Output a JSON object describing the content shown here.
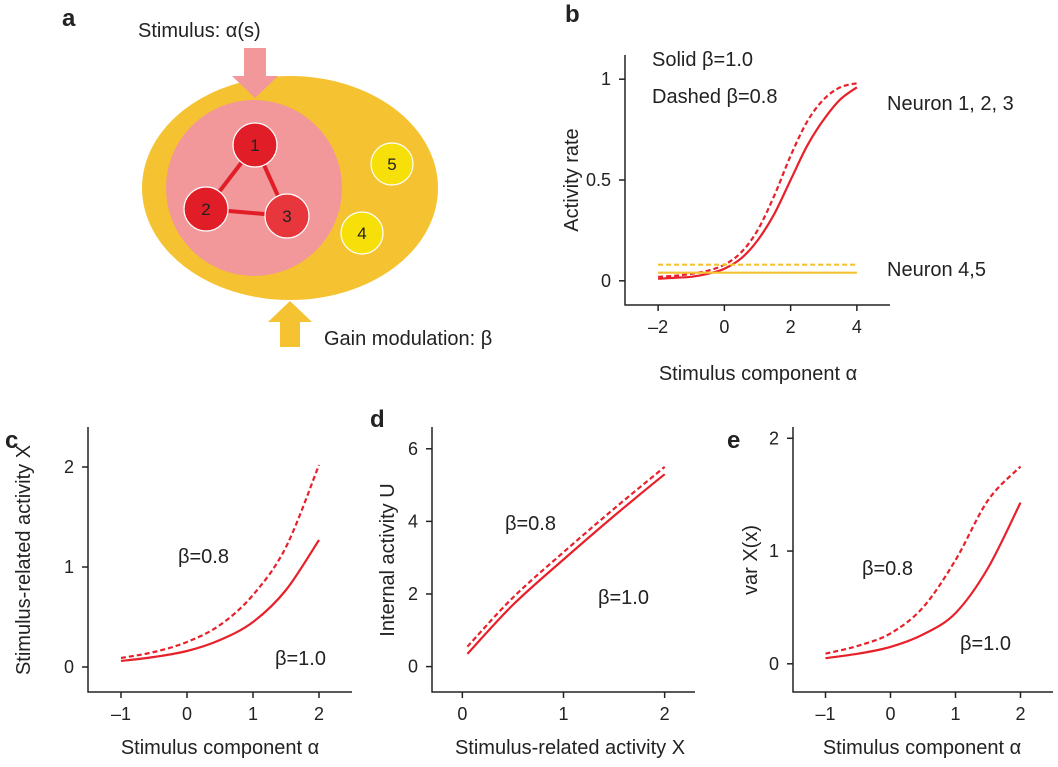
{
  "colors": {
    "red": "#e8202a",
    "orange": "#f5c232",
    "orange_dark": "#f0b51d",
    "pink": "#f2979a",
    "yellow_node": "#f7df0a",
    "node_red": "#e11e27",
    "axis": "#222222"
  },
  "diagram": {
    "letter": "a",
    "stimulus_label": "Stimulus: α(s)",
    "gain_label": "Gain modulation: β",
    "nodes": [
      {
        "label": "1",
        "group": "stimulus-related"
      },
      {
        "label": "2",
        "group": "stimulus-related"
      },
      {
        "label": "3",
        "group": "stimulus-related"
      },
      {
        "label": "4",
        "group": "other"
      },
      {
        "label": "5",
        "group": "other"
      }
    ],
    "edges": [
      [
        "1",
        "2"
      ],
      [
        "1",
        "3"
      ],
      [
        "2",
        "3"
      ]
    ]
  },
  "chart_data": [
    {
      "id": "b",
      "letter": "b",
      "type": "line",
      "xlabel": "Stimulus component α",
      "ylabel": "Activity rate",
      "xlim": [
        -3,
        5
      ],
      "ylim": [
        -0.12,
        1.12
      ],
      "xticks": [
        -2,
        0,
        2,
        4
      ],
      "yticks": [
        0,
        0.5,
        1
      ],
      "xtick_labels": [
        "–2",
        "0",
        "2",
        "4"
      ],
      "ytick_labels": [
        "0",
        "0.5",
        "1"
      ],
      "annotations": [
        "Solid β=1.0",
        "Dashed β=0.8",
        "Neuron 1, 2, 3",
        "Neuron 4,5"
      ],
      "series": [
        {
          "name": "Neuron 1, 2, 3",
          "style": "solid",
          "color": "red",
          "x": [
            -2,
            -1.5,
            -1,
            -0.5,
            0,
            0.5,
            1,
            1.5,
            2,
            2.5,
            3,
            3.5,
            4
          ],
          "y": [
            0.01,
            0.015,
            0.02,
            0.035,
            0.06,
            0.11,
            0.2,
            0.33,
            0.5,
            0.67,
            0.8,
            0.9,
            0.96
          ]
        },
        {
          "name": "Neuron 1, 2, 3",
          "style": "dashed",
          "color": "red",
          "x": [
            -2,
            -1.5,
            -1,
            -0.5,
            0,
            0.5,
            1,
            1.5,
            2,
            2.5,
            3,
            3.5,
            4
          ],
          "y": [
            0.02,
            0.025,
            0.035,
            0.05,
            0.08,
            0.14,
            0.25,
            0.42,
            0.62,
            0.79,
            0.9,
            0.96,
            0.98
          ]
        },
        {
          "name": "Neuron 4,5",
          "style": "solid",
          "color": "orange",
          "x": [
            -2,
            4
          ],
          "y": [
            0.04,
            0.04
          ]
        },
        {
          "name": "Neuron 4,5",
          "style": "dashed",
          "color": "orange",
          "x": [
            -2,
            4
          ],
          "y": [
            0.08,
            0.08
          ]
        }
      ]
    },
    {
      "id": "c",
      "letter": "c",
      "type": "line",
      "xlabel": "Stimulus component α",
      "ylabel": "Stimulus-related activity X",
      "xlim": [
        -1.5,
        2.5
      ],
      "ylim": [
        -0.25,
        2.4
      ],
      "xticks": [
        -1,
        0,
        1,
        2
      ],
      "yticks": [
        0,
        1,
        2
      ],
      "xtick_labels": [
        "–1",
        "0",
        "1",
        "2"
      ],
      "ytick_labels": [
        "0",
        "1",
        "2"
      ],
      "annotations": [
        "β=0.8",
        "β=1.0"
      ],
      "series": [
        {
          "name": "β=1.0",
          "style": "solid",
          "color": "red",
          "x": [
            -1,
            -0.5,
            0,
            0.5,
            1,
            1.5,
            2
          ],
          "y": [
            0.06,
            0.1,
            0.16,
            0.27,
            0.45,
            0.77,
            1.27
          ]
        },
        {
          "name": "β=0.8",
          "style": "dashed",
          "color": "red",
          "x": [
            -1,
            -0.5,
            0,
            0.5,
            1,
            1.5,
            2
          ],
          "y": [
            0.09,
            0.15,
            0.25,
            0.42,
            0.72,
            1.2,
            2.02
          ]
        }
      ]
    },
    {
      "id": "d",
      "letter": "d",
      "type": "line",
      "xlabel": "Stimulus-related activity X",
      "ylabel": "Internal activity U",
      "xlim": [
        -0.3,
        2.3
      ],
      "ylim": [
        -0.7,
        6.6
      ],
      "xticks": [
        0,
        1,
        2
      ],
      "yticks": [
        0,
        2,
        4,
        6
      ],
      "xtick_labels": [
        "0",
        "1",
        "2"
      ],
      "ytick_labels": [
        "0",
        "2",
        "4",
        "6"
      ],
      "annotations": [
        "β=0.8",
        "β=1.0"
      ],
      "series": [
        {
          "name": "β=1.0",
          "style": "solid",
          "color": "red",
          "x": [
            0.05,
            0.5,
            1,
            1.5,
            2
          ],
          "y": [
            0.35,
            1.7,
            2.95,
            4.15,
            5.3
          ]
        },
        {
          "name": "β=0.8",
          "style": "dashed",
          "color": "red",
          "x": [
            0.05,
            0.5,
            1,
            1.5,
            2
          ],
          "y": [
            0.55,
            1.9,
            3.15,
            4.35,
            5.5
          ]
        }
      ]
    },
    {
      "id": "e",
      "letter": "e",
      "type": "line",
      "xlabel": "Stimulus component α",
      "ylabel": "var X(x)",
      "xlim": [
        -1.5,
        2.5
      ],
      "ylim": [
        -0.25,
        2.1
      ],
      "xticks": [
        -1,
        0,
        1,
        2
      ],
      "yticks": [
        0,
        1,
        2
      ],
      "xtick_labels": [
        "–1",
        "0",
        "1",
        "2"
      ],
      "ytick_labels": [
        "0",
        "1",
        "2"
      ],
      "annotations": [
        "β=0.8",
        "β=1.0"
      ],
      "series": [
        {
          "name": "β=1.0",
          "style": "solid",
          "color": "red",
          "x": [
            -1,
            -0.5,
            0,
            0.5,
            1,
            1.5,
            2
          ],
          "y": [
            0.05,
            0.09,
            0.15,
            0.26,
            0.45,
            0.85,
            1.43
          ]
        },
        {
          "name": "β=0.8",
          "style": "dashed",
          "color": "red",
          "x": [
            -1,
            -0.5,
            0,
            0.5,
            1,
            1.5,
            2
          ],
          "y": [
            0.09,
            0.16,
            0.27,
            0.5,
            0.92,
            1.45,
            1.75
          ]
        }
      ]
    }
  ]
}
